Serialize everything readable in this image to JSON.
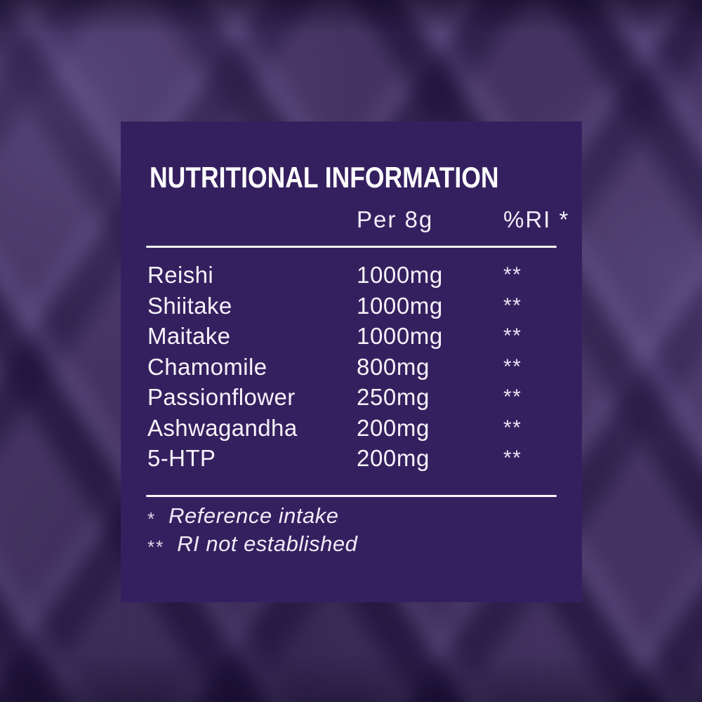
{
  "panel": {
    "title": "NUTRITIONAL INFORMATION",
    "columns": {
      "amount": "Per 8g",
      "ri": "%RI *"
    },
    "rows": [
      {
        "name": "Reishi",
        "amount": "1000mg",
        "ri": "**"
      },
      {
        "name": "Shiitake",
        "amount": "1000mg",
        "ri": "**"
      },
      {
        "name": "Maitake",
        "amount": "1000mg",
        "ri": "**"
      },
      {
        "name": "Chamomile",
        "amount": "800mg",
        "ri": "**"
      },
      {
        "name": "Passionflower",
        "amount": "250mg",
        "ri": "**"
      },
      {
        "name": "Ashwagandha",
        "amount": "200mg",
        "ri": "**"
      },
      {
        "name": "5-HTP",
        "amount": "200mg",
        "ri": "**"
      }
    ],
    "footnotes": [
      {
        "symbol": "*",
        "text": "Reference intake"
      },
      {
        "symbol": "**",
        "text": "RI not established"
      }
    ]
  },
  "colors": {
    "panel_background": "#35205f",
    "backdrop_base": "#453463",
    "text": "#f5f2fa",
    "divider": "#f8f6fc"
  }
}
